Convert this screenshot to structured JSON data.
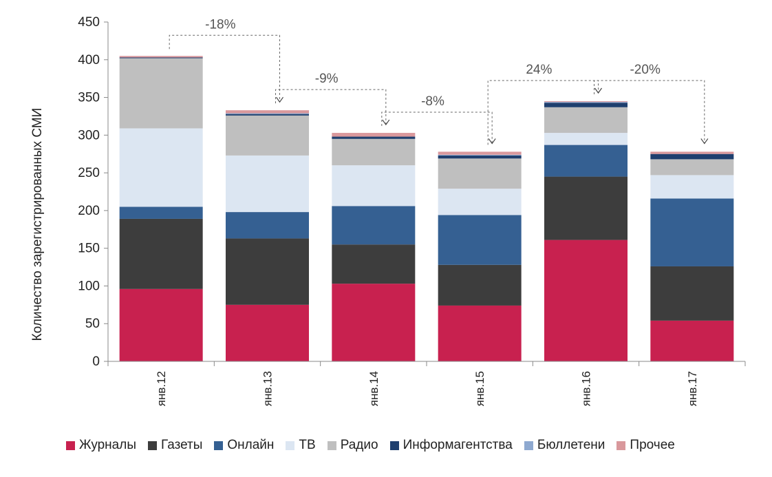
{
  "chart_data": {
    "type": "bar",
    "stacked": true,
    "ylabel": "Количество зарегистрированных СМИ",
    "ylim": [
      0,
      450
    ],
    "yticks": [
      0,
      50,
      100,
      150,
      200,
      250,
      300,
      350,
      400,
      450
    ],
    "categories": [
      "янв.12",
      "янв.13",
      "янв.14",
      "янв.15",
      "янв.16",
      "янв.17"
    ],
    "series": [
      {
        "name": "Журналы",
        "color": "#C8214F",
        "values": [
          96,
          75,
          103,
          74,
          161,
          54
        ]
      },
      {
        "name": "Газеты",
        "color": "#3D3D3D",
        "values": [
          93,
          88,
          52,
          54,
          84,
          72
        ]
      },
      {
        "name": "Онлайн",
        "color": "#356092",
        "values": [
          16,
          35,
          51,
          66,
          42,
          90
        ]
      },
      {
        "name": "ТВ",
        "color": "#DCE6F2",
        "values": [
          104,
          75,
          54,
          35,
          16,
          31
        ]
      },
      {
        "name": "Радио",
        "color": "#BFBFBF",
        "values": [
          93,
          53,
          35,
          40,
          34,
          21
        ]
      },
      {
        "name": "Информагентства",
        "color": "#1F3F6E",
        "values": [
          1,
          2,
          3,
          4,
          6,
          7
        ]
      },
      {
        "name": "Бюллетени",
        "color": "#8EA9D0",
        "values": [
          0,
          1,
          0,
          1,
          1,
          0
        ]
      },
      {
        "name": "Прочее",
        "color": "#D9989C",
        "values": [
          2,
          4,
          5,
          4,
          1,
          3
        ]
      }
    ],
    "annotations": [
      {
        "label": "-18%",
        "from": 0,
        "to": 1
      },
      {
        "label": "-9%",
        "from": 1,
        "to": 2
      },
      {
        "label": "-8%",
        "from": 2,
        "to": 3
      },
      {
        "label": "24%",
        "from": 3,
        "to": 4
      },
      {
        "label": "-20%",
        "from": 4,
        "to": 5
      }
    ]
  }
}
